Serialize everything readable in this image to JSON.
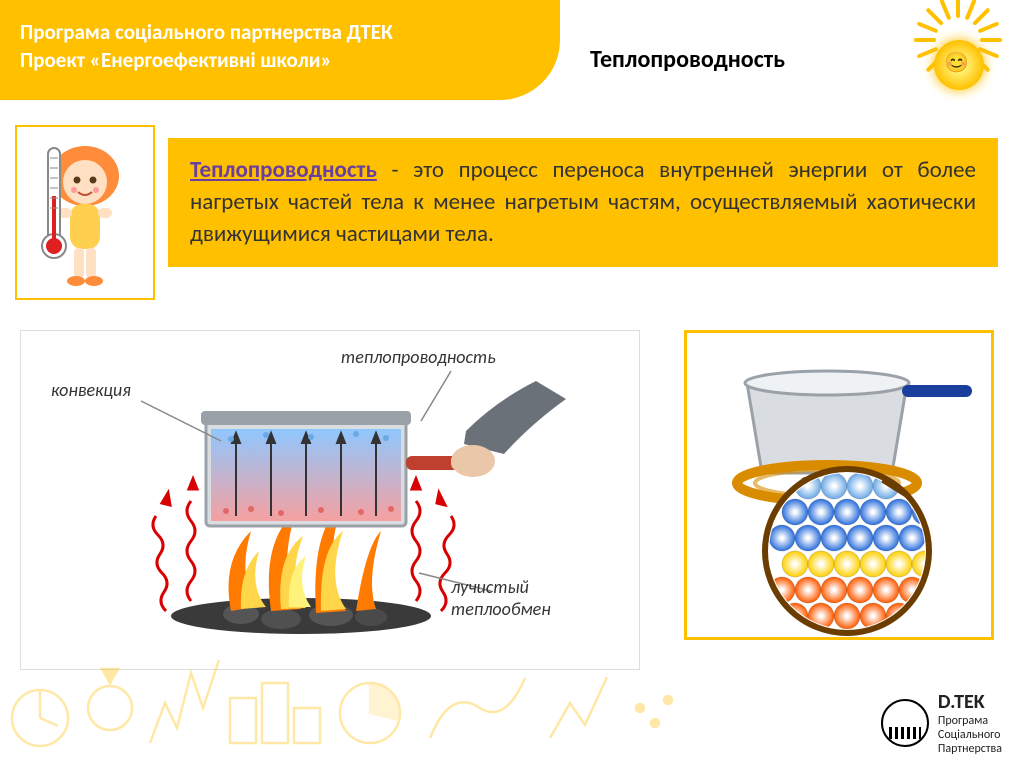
{
  "header": {
    "line1": "Програма соціального партнерства ДТЕК",
    "line2": "Проект «Енергоефективні школи»"
  },
  "title": "Теплопроводность",
  "definition": {
    "term": "Теплопроводность",
    "dash": " - ",
    "text": "это процесс переноса внутренней энергии от более нагретых частей тела к менее нагретым частям, осуществляемый хаотически движущимися частицами тела."
  },
  "diagram_left": {
    "labels": {
      "convection": "конвекция",
      "conduction": "теплопроводность",
      "radiation": "лучистый теплообмен"
    },
    "colors": {
      "pot": "#b0b8c0",
      "water_top": "#8fc7ff",
      "water_bottom": "#f5a0a0",
      "flame_outer": "#ff7a00",
      "flame_inner": "#ffd54a",
      "flame_core": "#fff27a",
      "coals": "#3a3a3a",
      "wave": "#d80000",
      "label_line": "#888",
      "handle": "#c04030",
      "sleeve": "#6a7178",
      "hand": "#e9c7a8",
      "hot_bubble": "#e36666",
      "cold_bubble": "#6aa8e6"
    }
  },
  "diagram_right": {
    "colors": {
      "pot_body": "#d9dde1",
      "pot_rim": "#9aa1a8",
      "handle": "#1a3e9e",
      "burner": "#d98c00",
      "ring": "#7a5b00",
      "circle_border": "#6b3d00",
      "atom_hot": "#ff5a00",
      "atom_mid": "#ffd000",
      "atom_cool": "#2a6edb",
      "atom_cold": "#6aa8e6",
      "bg": "#ffffff"
    },
    "atom_grid": {
      "cols": 6,
      "rows": 6
    }
  },
  "logo": {
    "brand": "D.TEK",
    "line1": "Програма",
    "line2": "Соціального",
    "line3": "Партнерства"
  },
  "palette": {
    "accent": "#ffc000",
    "term_color": "#6b3fa0",
    "text": "#333333",
    "header_text": "#ffffff"
  }
}
